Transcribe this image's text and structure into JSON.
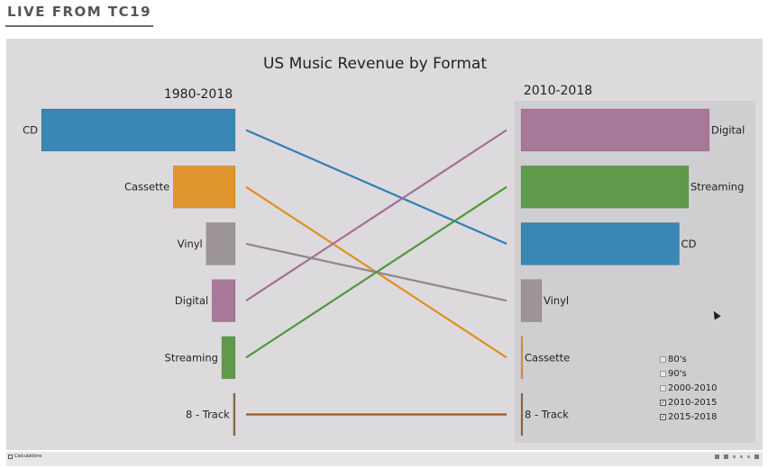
{
  "banner": {
    "title": "LIVE FROM TC19"
  },
  "chart_data": {
    "type": "slope-bar",
    "title": "US Music Revenue by Format",
    "left_panel": {
      "title": "1980-2018",
      "categories": [
        "CD",
        "Cassette",
        "Vinyl",
        "Digital",
        "Streaming",
        "8 - Track"
      ],
      "values": [
        100,
        32,
        15,
        12,
        7,
        1
      ]
    },
    "right_panel": {
      "title": "2010-2018",
      "categories": [
        "Digital",
        "Streaming",
        "CD",
        "Vinyl",
        "Cassette",
        "8 - Track"
      ],
      "values": [
        100,
        89,
        84,
        11,
        0.5,
        0.2
      ]
    },
    "links": [
      {
        "format": "CD",
        "from_rank": 1,
        "to_rank": 3,
        "color": "#2e7fb3"
      },
      {
        "format": "Cassette",
        "from_rank": 2,
        "to_rank": 5,
        "color": "#e08f1e"
      },
      {
        "format": "Vinyl",
        "from_rank": 3,
        "to_rank": 4,
        "color": "#8c8888"
      },
      {
        "format": "Digital",
        "from_rank": 4,
        "to_rank": 1,
        "color": "#a46f96"
      },
      {
        "format": "Streaming",
        "from_rank": 5,
        "to_rank": 2,
        "color": "#4e9a3b"
      },
      {
        "format": "8 - Track",
        "from_rank": 6,
        "to_rank": 6,
        "color": "#9a5a2a"
      }
    ],
    "colors": {
      "CD": "#3a86b4",
      "Cassette": "#e0952f",
      "Vinyl": "#9d9595",
      "Digital": "#a87898",
      "Streaming": "#5f9a4a",
      "8 - Track": "#8f6a3a"
    },
    "legend_placement": "bottom-right"
  },
  "filter_legend": {
    "items": [
      {
        "label": "80's",
        "checked": false
      },
      {
        "label": "90's",
        "checked": false
      },
      {
        "label": "2000-2010",
        "checked": false
      },
      {
        "label": "2010-2015",
        "checked": true
      },
      {
        "label": "2015-2018",
        "checked": true
      }
    ]
  },
  "statusbar": {
    "tab_label": "Calculations"
  }
}
